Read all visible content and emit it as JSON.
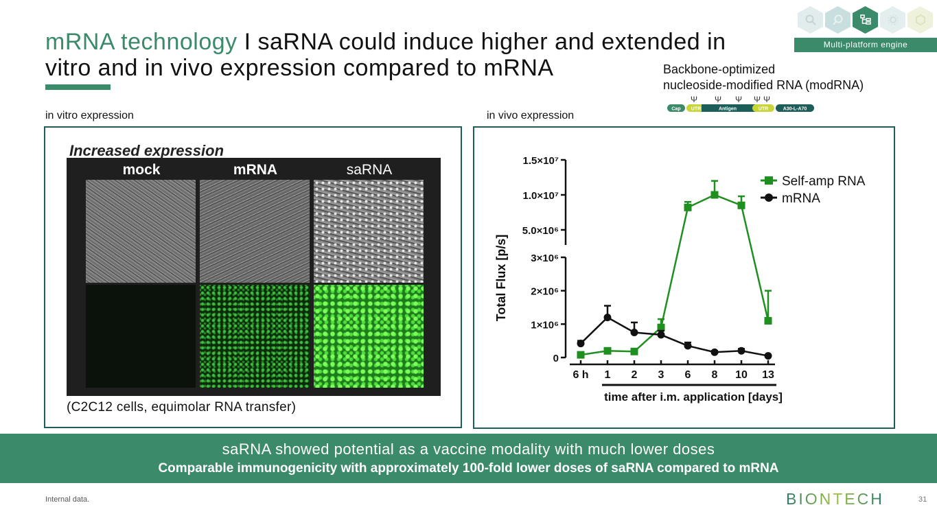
{
  "header": {
    "title_accent": "mRNA technology",
    "title_rest": " I saRNA could induce higher and extended in vitro and in vivo expression compared to mRNA",
    "platform_label": "Multi-platform engine",
    "platform_icons": [
      "search-icon",
      "magnifier-icon",
      "workflow-icon",
      "gear-icon",
      "hexagon-icon"
    ],
    "accent_color": "#3b8a6a"
  },
  "backbone": {
    "line1": "Backbone-optimized",
    "line2": "nucleoside-modified RNA (modRNA)",
    "psi": "Ψ",
    "segments": [
      "Cap",
      "UTR",
      "Antigen",
      "UTR",
      "A30-L-A70"
    ]
  },
  "in_vitro": {
    "label": "in vitro expression",
    "heading": "Increased expression",
    "columns": [
      "mock",
      "mRNA",
      "saRNA"
    ],
    "caption": "(C2C12 cells, equimolar RNA transfer)"
  },
  "in_vivo": {
    "label": "in vivo expression"
  },
  "chart_data": {
    "type": "line",
    "title": "",
    "xlabel": "time after i.m. application [days]",
    "ylabel": "Total Flux [p/s]",
    "categories": [
      "6 h",
      "1",
      "2",
      "3",
      "6",
      "8",
      "10",
      "13"
    ],
    "broken_y_axis": true,
    "lower_segment": {
      "ylim": [
        0,
        3000000
      ],
      "ticks": [
        "0",
        "1×10⁶",
        "2×10⁶",
        "3×10⁶"
      ]
    },
    "upper_segment": {
      "ylim": [
        5000000,
        15000000
      ],
      "ticks": [
        "5.0×10⁶",
        "1.0×10⁷",
        "1.5×10⁷"
      ]
    },
    "legend_position": "top-right",
    "series": [
      {
        "name": "Self-amp RNA",
        "color": "#1f8f1f",
        "marker": "square",
        "values": [
          80000,
          200000,
          180000,
          900000,
          8200000,
          10000000,
          8500000,
          1100000
        ],
        "error": [
          20000,
          40000,
          40000,
          250000,
          800000,
          2000000,
          1300000,
          900000
        ]
      },
      {
        "name": "mRNA",
        "color": "#111111",
        "marker": "circle",
        "values": [
          420000,
          1200000,
          750000,
          680000,
          350000,
          160000,
          200000,
          50000
        ],
        "error": [
          80000,
          350000,
          300000,
          120000,
          100000,
          40000,
          60000,
          20000
        ]
      }
    ]
  },
  "banner": {
    "line1": "saRNA showed potential as a vaccine modality with much lower doses",
    "line2": "Comparable immunogenicity with approximately 100-fold lower doses of saRNA compared to mRNA"
  },
  "footer": {
    "note": "Internal data.",
    "logo": "BIONTECH",
    "page": "31"
  }
}
